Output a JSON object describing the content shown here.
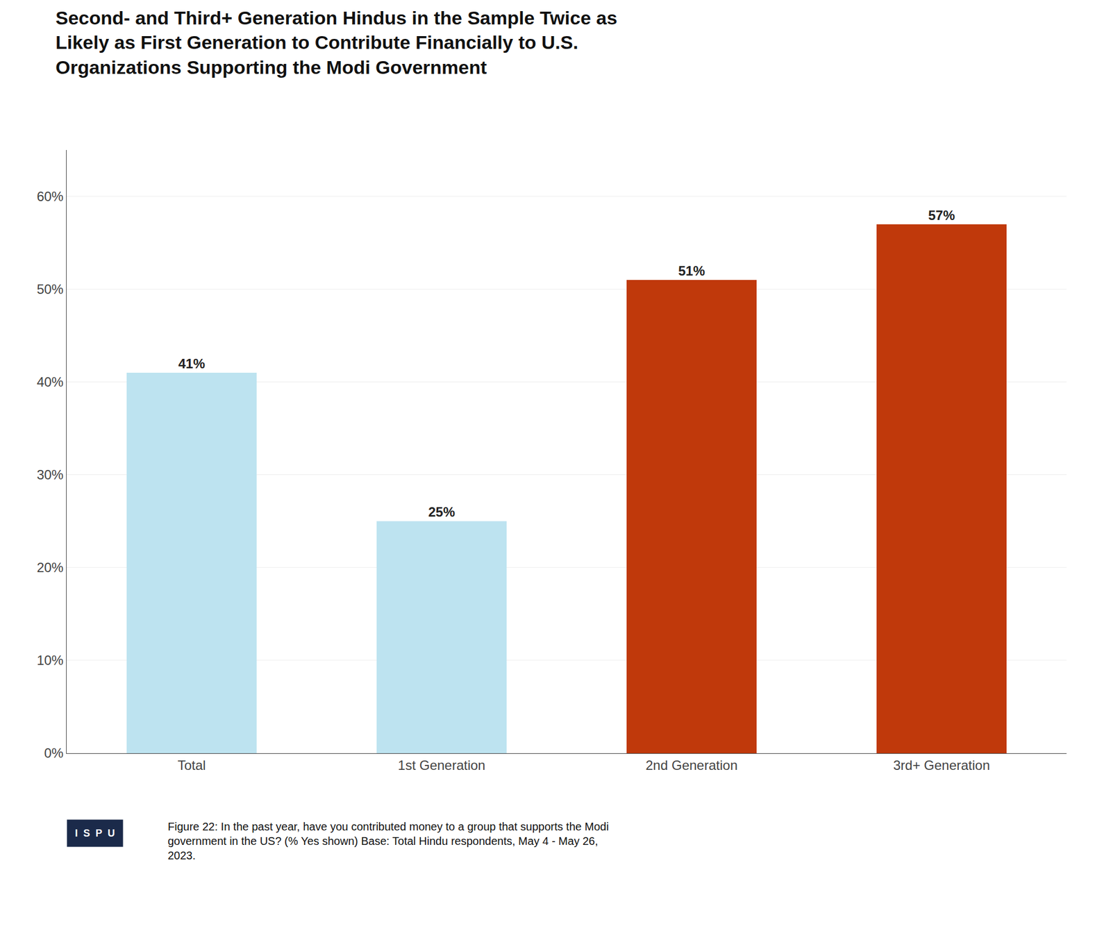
{
  "chart_data": {
    "type": "bar",
    "title": "Second- and Third+ Generation Hindus in the Sample Twice as\nLikely as First Generation to Contribute Financially to U.S.\nOrganizations Supporting the Modi Government",
    "categories": [
      "Total",
      "1st Generation",
      "2nd Generation",
      "3rd+ Generation"
    ],
    "values": [
      41,
      25,
      51,
      57
    ],
    "value_labels": [
      "41%",
      "25%",
      "51%",
      "57%"
    ],
    "colors": [
      "#bde3f0",
      "#bde3f0",
      "#c0390b",
      "#c0390b"
    ],
    "data_labels": true,
    "ylim": [
      0,
      65
    ],
    "yticks": [
      {
        "value": 0,
        "label": "0%"
      },
      {
        "value": 10,
        "label": "10%"
      },
      {
        "value": 20,
        "label": "20%"
      },
      {
        "value": 30,
        "label": "30%"
      },
      {
        "value": 40,
        "label": "40%"
      },
      {
        "value": 50,
        "label": "50%"
      },
      {
        "value": 60,
        "label": "60%"
      }
    ],
    "grid": true,
    "annotations": [
      "I  S  P  U",
      "Figure 22: In the past year, have you contributed money to a group that supports the Modi\ngovernment in the US? (% Yes shown) Base: Total Hindu respondents, May 4 - May 26,\n2023."
    ]
  }
}
